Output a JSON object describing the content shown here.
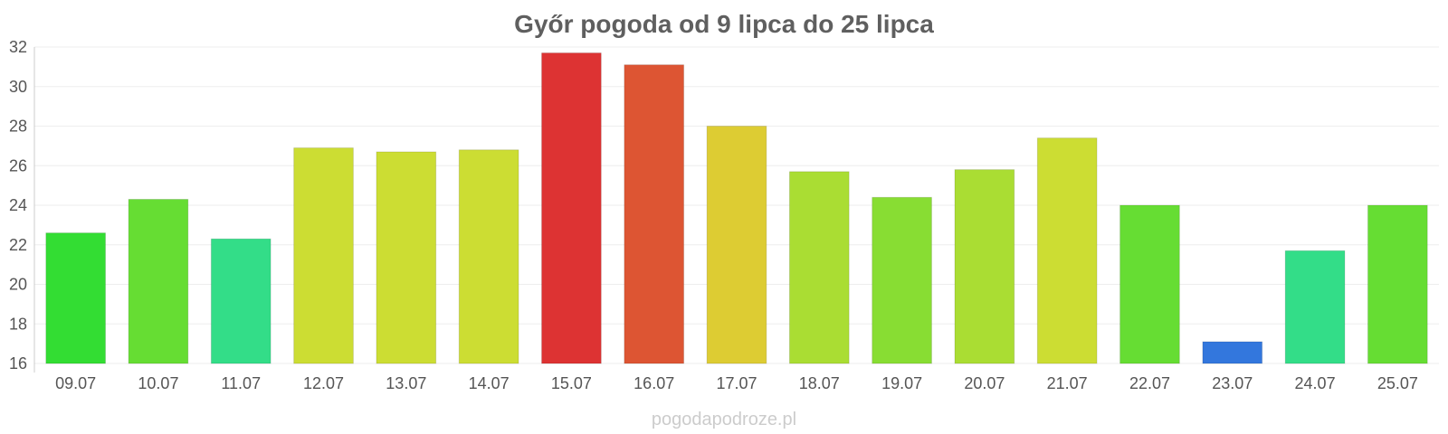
{
  "chart_data": {
    "type": "bar",
    "title": "Győr pogoda od 9 lipca do 25 lipca",
    "xlabel": "",
    "ylabel": "",
    "categories": [
      "09.07",
      "10.07",
      "11.07",
      "12.07",
      "13.07",
      "14.07",
      "15.07",
      "16.07",
      "17.07",
      "18.07",
      "19.07",
      "20.07",
      "21.07",
      "22.07",
      "23.07",
      "24.07",
      "25.07"
    ],
    "values": [
      22.6,
      24.3,
      22.3,
      26.9,
      26.7,
      26.8,
      31.7,
      31.1,
      28.0,
      25.7,
      24.4,
      25.8,
      27.4,
      24.0,
      17.1,
      21.7,
      24.0
    ],
    "colors": [
      "#33dd33",
      "#66dd33",
      "#33dd88",
      "#ccdd33",
      "#ccdd33",
      "#ccdd33",
      "#dd3333",
      "#dd5533",
      "#ddcc33",
      "#aadd33",
      "#88dd33",
      "#aadd33",
      "#ccdd33",
      "#66dd33",
      "#3377dd",
      "#33dd88",
      "#66dd33"
    ],
    "ylim": [
      16,
      32
    ],
    "yticks": [
      16,
      18,
      20,
      22,
      24,
      26,
      28,
      30,
      32
    ],
    "grid": true,
    "legend": "none"
  },
  "watermark": "pogodapodroze.pl"
}
